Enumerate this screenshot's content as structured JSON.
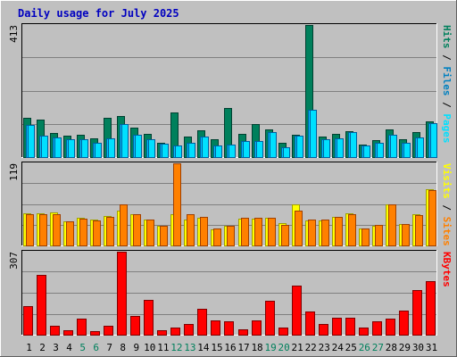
{
  "title": "Daily usage for July 2025",
  "colors": {
    "frame_bg": "#c0c0c0",
    "title": "#0000c0",
    "hits": "#00805c",
    "files": "#00c0ff",
    "pages": "#00e0ff",
    "visits": "#ffff00",
    "sites": "#ff8000",
    "kbytes": "#ff0000",
    "weekend_day": "#00805c"
  },
  "chart_data": [
    {
      "type": "bar",
      "panel": "hits_files_pages",
      "label_parts": [
        "Pages",
        "Files",
        "Hits"
      ],
      "max_label": "413",
      "ylim": [
        0,
        413
      ],
      "categories": [
        "1",
        "2",
        "3",
        "4",
        "5",
        "6",
        "7",
        "8",
        "9",
        "10",
        "11",
        "12",
        "13",
        "14",
        "15",
        "16",
        "17",
        "18",
        "19",
        "20",
        "21",
        "22",
        "23",
        "24",
        "25",
        "26",
        "27",
        "28",
        "29",
        "30",
        "31"
      ],
      "weekend_days": [
        "5",
        "6",
        "12",
        "13",
        "19",
        "20",
        "26",
        "27"
      ],
      "series": [
        {
          "name": "Hits",
          "values": [
            122,
            118,
            74,
            68,
            70,
            58,
            122,
            127,
            92,
            72,
            45,
            140,
            65,
            84,
            56,
            153,
            72,
            102,
            86,
            45,
            70,
            413,
            65,
            72,
            80,
            38,
            52,
            86,
            55,
            79,
            113
          ]
        },
        {
          "name": "Files",
          "values": [
            100,
            67,
            62,
            56,
            55,
            44,
            59,
            102,
            71,
            56,
            42,
            35,
            46,
            65,
            36,
            40,
            49,
            50,
            79,
            32,
            68,
            148,
            55,
            58,
            79,
            36,
            44,
            70,
            45,
            61,
            106
          ]
        },
        {
          "name": "Pages",
          "values": [
            100,
            67,
            62,
            56,
            55,
            44,
            59,
            102,
            71,
            56,
            42,
            35,
            46,
            65,
            36,
            40,
            49,
            50,
            79,
            32,
            68,
            148,
            55,
            58,
            79,
            36,
            44,
            70,
            45,
            61,
            106
          ]
        }
      ]
    },
    {
      "type": "bar",
      "panel": "visits_sites",
      "label_parts": [
        "Sites",
        "Visits"
      ],
      "max_label": "119",
      "ylim": [
        0,
        119
      ],
      "categories": [
        "1",
        "2",
        "3",
        "4",
        "5",
        "6",
        "7",
        "8",
        "9",
        "10",
        "11",
        "12",
        "13",
        "14",
        "15",
        "16",
        "17",
        "18",
        "19",
        "20",
        "21",
        "22",
        "23",
        "24",
        "25",
        "26",
        "27",
        "28",
        "29",
        "30",
        "31"
      ],
      "series": [
        {
          "name": "Visits",
          "values": [
            46,
            46,
            48,
            35,
            40,
            37,
            43,
            50,
            45,
            38,
            29,
            45,
            37,
            40,
            23,
            28,
            39,
            39,
            40,
            32,
            59,
            36,
            36,
            42,
            46,
            25,
            29,
            60,
            31,
            45,
            82
          ]
        },
        {
          "name": "Sites",
          "values": [
            45,
            45,
            45,
            35,
            39,
            36,
            42,
            60,
            45,
            38,
            29,
            119,
            45,
            42,
            24,
            29,
            40,
            40,
            40,
            30,
            50,
            38,
            38,
            42,
            45,
            25,
            30,
            60,
            31,
            44,
            80
          ]
        }
      ]
    },
    {
      "type": "bar",
      "panel": "kbytes",
      "label_parts": [
        "KBytes"
      ],
      "max_label": "307",
      "ylim": [
        0,
        307
      ],
      "categories": [
        "1",
        "2",
        "3",
        "4",
        "5",
        "6",
        "7",
        "8",
        "9",
        "10",
        "11",
        "12",
        "13",
        "14",
        "15",
        "16",
        "17",
        "18",
        "19",
        "20",
        "21",
        "22",
        "23",
        "24",
        "25",
        "26",
        "27",
        "28",
        "29",
        "30",
        "31"
      ],
      "series": [
        {
          "name": "KBytes",
          "values": [
            105,
            222,
            32,
            18,
            60,
            12,
            32,
            307,
            70,
            128,
            18,
            26,
            40,
            97,
            52,
            51,
            20,
            52,
            124,
            28,
            183,
            86,
            38,
            63,
            64,
            25,
            48,
            58,
            89,
            166,
            197
          ]
        }
      ]
    }
  ]
}
